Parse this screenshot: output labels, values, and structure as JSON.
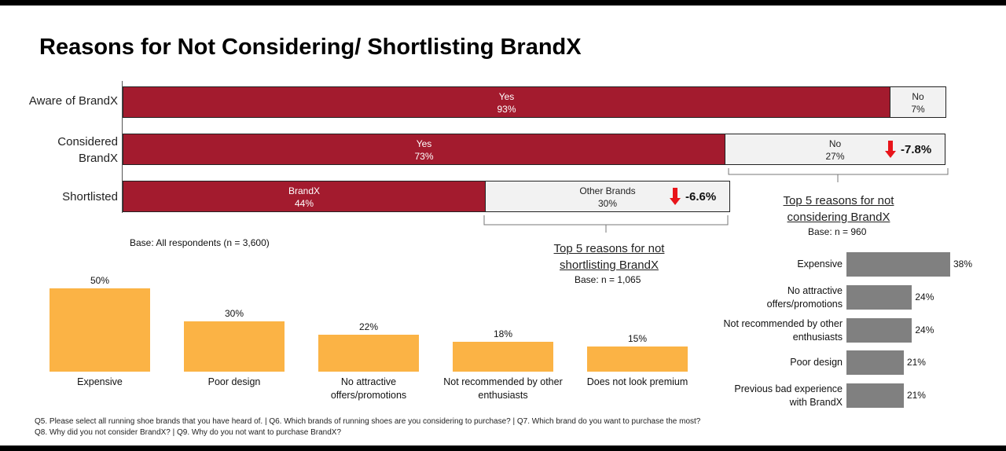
{
  "title": "Reasons for Not Considering/ Shortlisting BrandX",
  "funnel": {
    "rows": [
      {
        "label_lines": [
          "Aware of BrandX"
        ],
        "main_label": "Yes",
        "main_value": "93%",
        "main_pct": 93,
        "rest_label": "No",
        "rest_value": "7%"
      },
      {
        "label_lines": [
          "Considered",
          "BrandX"
        ],
        "main_label": "Yes",
        "main_value": "73%",
        "main_pct": 73,
        "rest_label": "No",
        "rest_value": "27%",
        "delta": "-7.8%"
      },
      {
        "label_lines": [
          "Shortlisted"
        ],
        "main_label": "BrandX",
        "main_value": "44%",
        "main_pct": 44,
        "rest_label": "Other Brands",
        "rest_value": "30%",
        "delta": "-6.6%"
      }
    ]
  },
  "base_all": "Base: All respondents (n = 3,600)",
  "not_considering": {
    "heading_lines": [
      "Top 5 reasons for not",
      "considering BrandX"
    ],
    "base": "Base: n = 960"
  },
  "not_shortlisting": {
    "heading_lines": [
      "Top 5 reasons for not",
      "shortlisting BrandX"
    ],
    "base": "Base: n = 1,065"
  },
  "footnotes": [
    "Q5. Please select all running shoe brands that you have heard of. | Q6. Which brands of running shoes are you considering to purchase? | Q7. Which brand do you want to purchase the most?",
    "Q8. Why did you not consider BrandX? | Q9. Why do you not want to purchase BrandX?"
  ],
  "colors": {
    "brand": "#a31b2e",
    "other": "#f2f2f2",
    "shortlist_bars": "#fbb345",
    "consider_bars": "#808080",
    "arrow": "#e8141a"
  },
  "icons": [
    "arrow-down-icon"
  ],
  "chart_data": [
    {
      "type": "bar",
      "orientation": "horizontal-stacked",
      "categories": [
        "Aware of BrandX",
        "Considered BrandX",
        "Shortlisted"
      ],
      "series": [
        {
          "name": "Yes / BrandX",
          "values": [
            93,
            73,
            44
          ]
        },
        {
          "name": "No / Other Brands",
          "values": [
            7,
            27,
            30
          ]
        }
      ],
      "annotations": [
        "-7.8%",
        "-6.6%"
      ]
    },
    {
      "type": "bar",
      "title": "Top 5 reasons for not shortlisting BrandX",
      "categories": [
        "Expensive",
        "Poor design",
        "No attractive offers/promotions",
        "Not recommended by other enthusiasts",
        "Does not look premium"
      ],
      "category_lines": [
        [
          "Expensive"
        ],
        [
          "Poor design"
        ],
        [
          "No attractive",
          "offers/promotions"
        ],
        [
          "Not recommended by other",
          "enthusiasts"
        ],
        [
          "Does not look premium"
        ]
      ],
      "values": [
        50,
        30,
        22,
        18,
        15
      ],
      "labels": [
        "50%",
        "30%",
        "22%",
        "18%",
        "15%"
      ]
    },
    {
      "type": "bar",
      "orientation": "horizontal",
      "title": "Top 5 reasons for not considering BrandX",
      "categories": [
        "Expensive",
        "No attractive offers/promotions",
        "Not recommended by other enthusiasts",
        "Poor design",
        "Previous bad experience with BrandX"
      ],
      "category_lines": [
        [
          "Expensive"
        ],
        [
          "No attractive",
          "offers/promotions"
        ],
        [
          "Not recommended by other",
          "enthusiasts"
        ],
        [
          "Poor design"
        ],
        [
          "Previous bad experience",
          "with BrandX"
        ]
      ],
      "values": [
        38,
        24,
        24,
        21,
        21
      ],
      "labels": [
        "38%",
        "24%",
        "24%",
        "21%",
        "21%"
      ]
    }
  ]
}
